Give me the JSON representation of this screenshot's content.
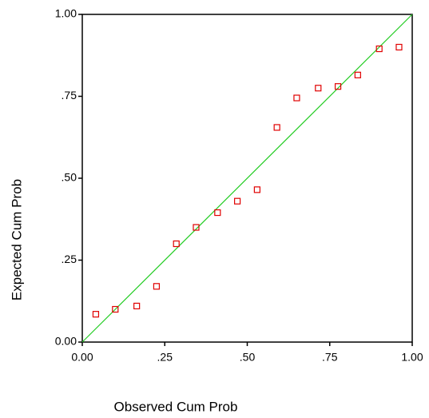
{
  "chart_data": {
    "type": "scatter",
    "x_label": "Observed Cum Prob",
    "y_label": "Expected Cum Prob",
    "x": [
      0.041,
      0.1,
      0.165,
      0.225,
      0.285,
      0.345,
      0.41,
      0.47,
      0.53,
      0.59,
      0.65,
      0.715,
      0.775,
      0.835,
      0.9,
      0.96
    ],
    "values": [
      0.085,
      0.1,
      0.11,
      0.17,
      0.3,
      0.35,
      0.395,
      0.43,
      0.465,
      0.655,
      0.745,
      0.775,
      0.78,
      0.815,
      0.895,
      0.9
    ],
    "color": "#e00000",
    "line_color": "#22cc22",
    "xlim": [
      0,
      1
    ],
    "ylim": [
      0,
      1
    ],
    "xticks": [
      {
        "value": 0,
        "label": "0.00"
      },
      {
        "value": 0.25,
        "label": ".25"
      },
      {
        "value": 0.5,
        "label": ".50"
      },
      {
        "value": 0.75,
        "label": ".75"
      },
      {
        "value": 1,
        "label": "1.00"
      }
    ],
    "yticks": [
      {
        "value": 0,
        "label": "0.00"
      },
      {
        "value": 0.25,
        "label": ".25"
      },
      {
        "value": 0.5,
        "label": ".50"
      },
      {
        "value": 0.75,
        "label": ".75"
      },
      {
        "value": 1,
        "label": "1.00"
      }
    ]
  }
}
